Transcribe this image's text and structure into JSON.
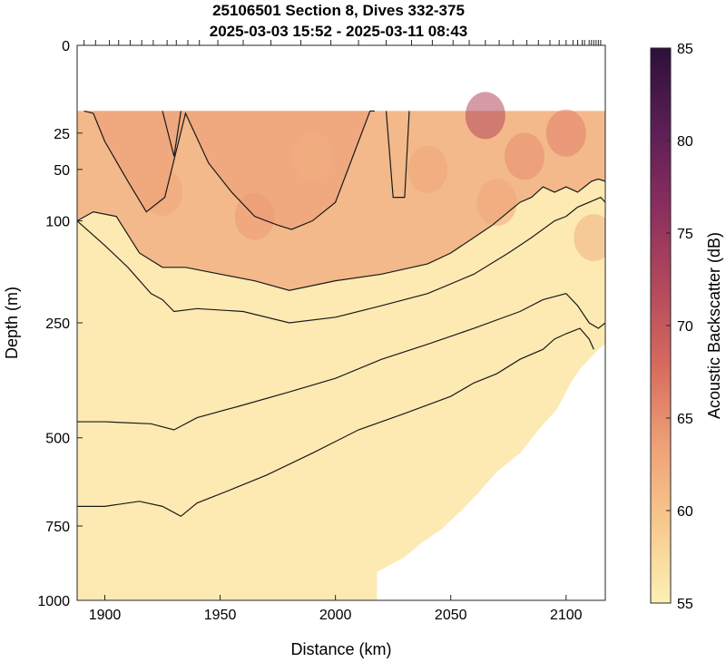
{
  "chart_data": {
    "type": "heatmap",
    "title": "25106501 Section 8, Dives 332-375",
    "subtitle": "2025-03-03 15:52 - 2025-03-11 08:43",
    "xlabel": "Distance (km)",
    "ylabel": "Depth (m)",
    "colorbar_label": "Acoustic Backscatter (dB)",
    "xlim": [
      1888,
      2117
    ],
    "ylim": [
      0,
      1000
    ],
    "y_scale": "sqrt",
    "x_ticks": [
      1900,
      1950,
      2000,
      2050,
      2100
    ],
    "x_tick_labels": [
      "1900",
      "1950",
      "2000",
      "2050",
      "2100"
    ],
    "y_ticks": [
      0,
      25,
      50,
      100,
      250,
      500,
      750,
      1000
    ],
    "y_tick_labels": [
      "0",
      "25",
      "50",
      "100",
      "250",
      "500",
      "750",
      "1000"
    ],
    "color_range": [
      55,
      85
    ],
    "colorbar_ticks": [
      55,
      60,
      65,
      70,
      75,
      80,
      85
    ],
    "colorbar_tick_labels": [
      "55",
      "60",
      "65",
      "70",
      "75",
      "80",
      "85"
    ],
    "colormap": [
      "#fdf0b5",
      "#f7c98e",
      "#eea077",
      "#d76a5e",
      "#b2485c",
      "#8a2e5e",
      "#5a1e55",
      "#2d0f3a"
    ],
    "dive_locations_km": [
      1891,
      1896,
      1902,
      1906,
      1911,
      1916,
      1921,
      1927,
      1931,
      1936,
      1941,
      1949,
      1960,
      1972,
      1985,
      1998,
      2010,
      2022,
      2033,
      2042,
      2051,
      2058,
      2065,
      2071,
      2077,
      2083,
      2088,
      2093,
      2097,
      2100,
      2103,
      2105,
      2107,
      2108,
      2110,
      2111,
      2112,
      2113,
      2114,
      2115
    ],
    "data_depth_limit": {
      "x": [
        1888,
        2018,
        2018,
        2030,
        2038,
        2046,
        2055,
        2062,
        2070,
        2080,
        2088,
        2096,
        2102,
        2106,
        2110,
        2114,
        2117
      ],
      "depth": [
        1000,
        1000,
        900,
        850,
        800,
        760,
        700,
        650,
        590,
        540,
        480,
        430,
        370,
        340,
        320,
        300,
        290
      ]
    },
    "surface_gap_depth": 14,
    "high_backscatter_patches": [
      {
        "x": 1925,
        "depth": 70,
        "db": 63
      },
      {
        "x": 1965,
        "depth": 95,
        "db": 64
      },
      {
        "x": 1990,
        "depth": 40,
        "db": 62
      },
      {
        "x": 2040,
        "depth": 50,
        "db": 63
      },
      {
        "x": 2065,
        "depth": 16,
        "db": 72
      },
      {
        "x": 2070,
        "depth": 80,
        "db": 63
      },
      {
        "x": 2082,
        "depth": 40,
        "db": 65
      },
      {
        "x": 2100,
        "depth": 25,
        "db": 66
      },
      {
        "x": 2112,
        "depth": 120,
        "db": 62
      }
    ],
    "contours": [
      {
        "x": [
          1891,
          1895,
          1900,
          1910,
          1918,
          1926,
          1935,
          1945,
          1955,
          1965,
          1975,
          1981,
          1990,
          2000,
          2010,
          2015,
          2017
        ],
        "depth": [
          14,
          15,
          30,
          60,
          90,
          75,
          15,
          45,
          70,
          95,
          105,
          110,
          100,
          80,
          30,
          14,
          14
        ]
      },
      {
        "x": [
          1925,
          1930,
          1933
        ],
        "depth": [
          14,
          40,
          14
        ]
      },
      {
        "x": [
          2022,
          2025,
          2030,
          2032
        ],
        "depth": [
          14,
          75,
          75,
          14
        ]
      },
      {
        "x": [
          1888,
          1895,
          1905,
          1915,
          1925,
          1935,
          1950,
          1965,
          1980,
          2000,
          2020,
          2040,
          2050,
          2060,
          2068,
          2075,
          2080,
          2085,
          2090,
          2095,
          2100,
          2105,
          2108,
          2111,
          2114,
          2117
        ],
        "depth": [
          100,
          90,
          95,
          140,
          160,
          160,
          170,
          180,
          195,
          180,
          170,
          155,
          140,
          120,
          105,
          90,
          80,
          75,
          65,
          70,
          65,
          70,
          65,
          60,
          58,
          60
        ]
      },
      {
        "x": [
          1888,
          1900,
          1910,
          1920,
          1925,
          1930,
          1940,
          1960,
          1980,
          2000,
          2020,
          2040,
          2060,
          2075,
          2085,
          2095,
          2100,
          2105,
          2110,
          2115,
          2117
        ],
        "depth": [
          100,
          130,
          160,
          200,
          210,
          230,
          225,
          230,
          250,
          240,
          220,
          200,
          170,
          140,
          120,
          100,
          95,
          85,
          80,
          75,
          80
        ]
      },
      {
        "x": [
          1888,
          1900,
          1920,
          1930,
          1940,
          1960,
          1980,
          2000,
          2020,
          2040,
          2060,
          2080,
          2090,
          2100,
          2105,
          2110,
          2114,
          2117
        ],
        "depth": [
          460,
          460,
          465,
          480,
          450,
          420,
          390,
          360,
          320,
          290,
          260,
          230,
          210,
          200,
          220,
          250,
          260,
          250
        ]
      },
      {
        "x": [
          1888,
          1900,
          1915,
          1925,
          1933,
          1940,
          1955,
          1970,
          1990,
          2010,
          2030,
          2050,
          2060,
          2070,
          2080,
          2090,
          2095,
          2100,
          2106,
          2110,
          2112
        ],
        "depth": [
          690,
          690,
          675,
          690,
          720,
          680,
          640,
          600,
          540,
          480,
          440,
          400,
          370,
          350,
          320,
          300,
          280,
          270,
          260,
          280,
          300
        ]
      }
    ]
  }
}
